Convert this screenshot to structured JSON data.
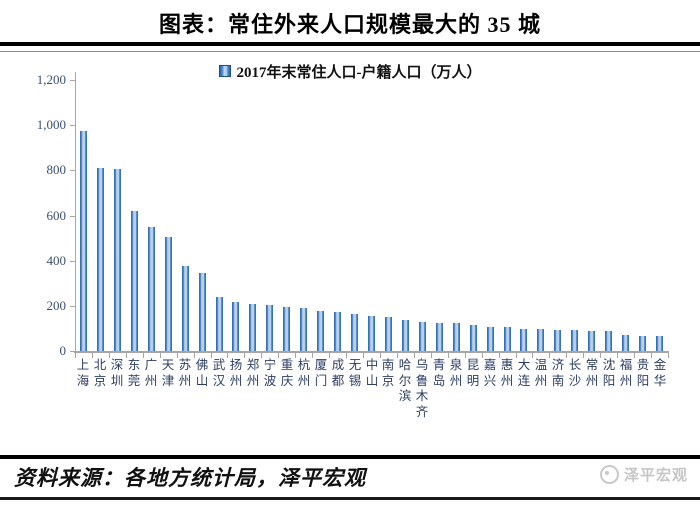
{
  "page": {
    "title": "图表：常住外来人口规模最大的 35 城",
    "legend_label": "2017年末常住人口-户籍人口（万人）",
    "source": "资料来源：各地方统计局，泽平宏观",
    "watermark": "泽平宏观"
  },
  "colors": {
    "bar_edge": "#2a67ae",
    "bar_center": "#cfe0f2",
    "axis": "#a6a6a6",
    "y_label": "#3a4f78",
    "x_label": "#2c3e63",
    "title": "#000000",
    "watermark": "#c6c6c6"
  },
  "chart_data": {
    "type": "bar",
    "title": "图表：常住外来人口规模最大的 35 城",
    "series_name": "2017年末常住人口-户籍人口（万人）",
    "unit": "万人",
    "legend_position": "top",
    "grid": false,
    "ylim": [
      0,
      1200
    ],
    "yticks": [
      0,
      200,
      400,
      600,
      800,
      1000,
      1200
    ],
    "categories": [
      "上海",
      "北京",
      "深圳",
      "东莞",
      "广州",
      "天津",
      "苏州",
      "佛山",
      "武汉",
      "扬州",
      "郑州",
      "宁波",
      "重庆",
      "杭州",
      "厦门",
      "成都",
      "无锡",
      "中山",
      "南京",
      "哈尔滨",
      "乌鲁木齐",
      "青岛",
      "泉州",
      "昆明",
      "嘉兴",
      "惠州",
      "大连",
      "温州",
      "济南",
      "长沙",
      "常州",
      "沈阳",
      "福州",
      "贵阳",
      "金华"
    ],
    "values": [
      973,
      812,
      808,
      622,
      550,
      505,
      378,
      345,
      237,
      219,
      208,
      205,
      194,
      192,
      175,
      173,
      164,
      156,
      152,
      136,
      128,
      125,
      123,
      113,
      107,
      105,
      98,
      96,
      95,
      93,
      89,
      87,
      73,
      68,
      67
    ]
  }
}
